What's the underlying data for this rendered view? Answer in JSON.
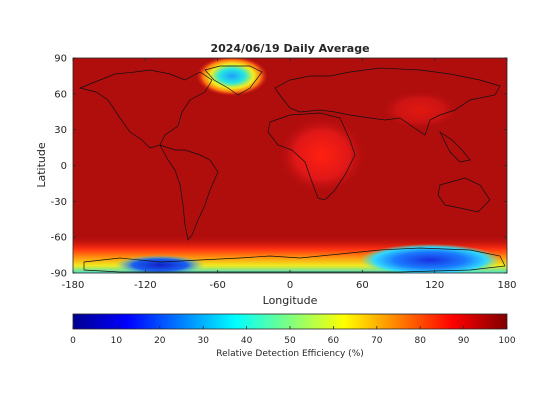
{
  "chart_data": {
    "type": "heatmap",
    "title": "2024/06/19 Daily Average",
    "xlabel": "Longitude",
    "ylabel": "Latitude",
    "xlim": [
      -180,
      180
    ],
    "ylim": [
      -90,
      90
    ],
    "xticks": [
      -180,
      -120,
      -60,
      0,
      60,
      120,
      180
    ],
    "yticks": [
      90,
      60,
      30,
      0,
      -30,
      -60,
      -90
    ],
    "colormap": "jet",
    "colorbar": {
      "label": "Relative Detection Efficiency (%)",
      "range": [
        0,
        100
      ],
      "ticks": [
        0,
        10,
        20,
        30,
        40,
        50,
        60,
        70,
        80,
        90,
        100
      ]
    },
    "background_value": 97,
    "features": [
      {
        "name": "Greenland minimum",
        "lon": -40,
        "lat": 72,
        "value": 28
      },
      {
        "name": "East Antarctic minimum",
        "lon": 125,
        "lat": -80,
        "value": 12
      },
      {
        "name": "West Antarctic minimum",
        "lon": -110,
        "lat": -84,
        "value": 10
      },
      {
        "name": "Southern ocean edge band",
        "lat": -75,
        "value": 75
      },
      {
        "name": "Central Africa minimum",
        "lon": 25,
        "lat": 8,
        "value": 88
      }
    ]
  }
}
